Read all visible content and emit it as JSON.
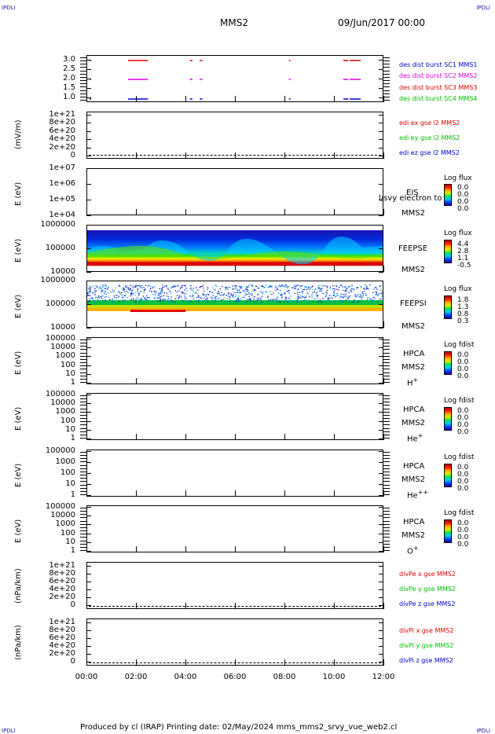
{
  "corner_tl": "IPDLI",
  "corner_tr": "IPDLI",
  "corner_bl": "IPDLI",
  "corner_br": "IPDLI",
  "header": {
    "spacecraft": "MMS2",
    "datetime": "09/Jun/2017 00:00"
  },
  "footer": "Produced by cl (IRAP)   Printing date: 02/May/2024   mms_mms2_srvy_vue_web2.cl",
  "colors": {
    "red": "#dd0000",
    "magenta": "#e000e0",
    "blue": "#0000cc",
    "green": "#00c000"
  },
  "x_ticks": [
    "00:00",
    "02:00",
    "04:00",
    "06:00",
    "08:00",
    "10:00",
    "12:00"
  ],
  "panels": {
    "burst": {
      "yticks": [
        "3.0",
        "2.5",
        "2.0",
        "1.5",
        "1.0"
      ],
      "legend": [
        "des dist burst SC1 MMS1",
        "des dist burst SC2 MMS2",
        "des dist burst SC3 MMS3",
        "des dist burst SC4 MMS4"
      ]
    },
    "edi": {
      "ylabel": "(mV/m)",
      "yticks": [
        "1e+21",
        "8e+20",
        "6e+20",
        "4e+20",
        "2e+20",
        "0"
      ],
      "legend": [
        "edi ex gse l2 MMS2",
        "edi ey gse l2 MMS2",
        "edi ez gse l2 MMS2"
      ]
    },
    "eis": {
      "ylabel": "E (eV)",
      "yticks": [
        "1e+07",
        "1e+06",
        "1e+05",
        "1e+04"
      ],
      "inst": "EIS",
      "overlay": "l/svy electron to",
      "sc": "MMS2",
      "cbar_title": "Log flux",
      "cvals": [
        "0.0",
        "0.0",
        "0.0",
        "0.0"
      ]
    },
    "feepse": {
      "ylabel": "E (eV)",
      "yticks": [
        "1000000",
        "100000",
        "10000"
      ],
      "inst": "FEEPSE",
      "sc": "MMS2",
      "cbar_title": "Log flux",
      "cvals": [
        "4.4",
        "2.8",
        "1.1",
        "-0.5"
      ]
    },
    "feepsi": {
      "ylabel": "E (eV)",
      "yticks": [
        "1000000",
        "100000",
        "10000"
      ],
      "inst": "FEEPSI",
      "sc": "MMS2",
      "cbar_title": "Log flux",
      "cvals": [
        "1.8",
        "1.3",
        "0.8",
        "0.3"
      ]
    },
    "hpca_h": {
      "ylabel": "E (eV)",
      "yticks": [
        "100000",
        "10000",
        "1000",
        "100",
        "10",
        "1"
      ],
      "inst": "HPCA",
      "sc": "MMS2",
      "species": "H",
      "sup": "+",
      "cbar_title": "Log fdist",
      "cvals": [
        "0.0",
        "0.0",
        "0.0",
        "0.0"
      ]
    },
    "hpca_he": {
      "ylabel": "E (eV)",
      "yticks": [
        "100000",
        "10000",
        "1000",
        "100",
        "10",
        "1"
      ],
      "inst": "HPCA",
      "sc": "MMS2",
      "species": "He",
      "sup": "+",
      "cbar_title": "Log fdist",
      "cvals": [
        "0.0",
        "0.0",
        "0.0",
        "0.0"
      ]
    },
    "hpca_he2": {
      "ylabel": "E (eV)",
      "yticks": [
        "100000",
        "1000",
        "100",
        "10",
        "1"
      ],
      "inst": "HPCA",
      "sc": "MMS2",
      "species": "He",
      "sup": "++",
      "cbar_title": "Log fdist",
      "cvals": [
        "0.0",
        "0.0",
        "0.0",
        "0.0"
      ]
    },
    "hpca_o": {
      "ylabel": "E (eV)",
      "yticks": [
        "100000",
        "10000",
        "1000",
        "100",
        "10",
        "1"
      ],
      "inst": "HPCA",
      "sc": "MMS2",
      "species": "O",
      "sup": "+",
      "cbar_title": "Log fdist",
      "cvals": [
        "0.0",
        "0.0",
        "0.0",
        "0.0"
      ]
    },
    "divpe": {
      "ylabel": "(nPa/km)",
      "yticks": [
        "1e+21",
        "8e+20",
        "6e+20",
        "4e+20",
        "2e+20",
        "0"
      ],
      "legend": [
        "divPe x gse MMS2",
        "divPe y gse MMS2",
        "divPe z gse MMS2"
      ]
    },
    "divpi": {
      "ylabel": "(nPa/km)",
      "yticks": [
        "1e+21",
        "8e+20",
        "6e+20",
        "4e+20",
        "2e+20",
        "0"
      ],
      "legend": [
        "divPi x gse MMS2",
        "divPi y gse MMS2",
        "divPi z gse MMS2"
      ]
    }
  },
  "chart_data": {
    "type": "scatter",
    "x_range_hours": [
      0,
      12
    ],
    "burst_intervals": {
      "SC1": [
        [
          0.1,
          0.13
        ],
        [
          1.65,
          2.45
        ],
        [
          4.15,
          4.25
        ],
        [
          4.55,
          4.65
        ],
        [
          8.15,
          8.2
        ],
        [
          10.35,
          10.55
        ],
        [
          10.6,
          11.05
        ]
      ],
      "SC2": [
        [
          0.1,
          0.13
        ],
        [
          1.65,
          2.45
        ],
        [
          4.15,
          4.25
        ],
        [
          4.55,
          4.65
        ],
        [
          8.15,
          8.2
        ],
        [
          10.35,
          10.55
        ],
        [
          10.6,
          11.05
        ]
      ],
      "SC3": [
        [
          0.1,
          0.13
        ],
        [
          1.65,
          2.45
        ],
        [
          4.15,
          4.25
        ],
        [
          4.55,
          4.65
        ],
        [
          8.15,
          8.2
        ],
        [
          10.35,
          10.55
        ],
        [
          10.6,
          11.05
        ]
      ],
      "SC4": []
    }
  }
}
